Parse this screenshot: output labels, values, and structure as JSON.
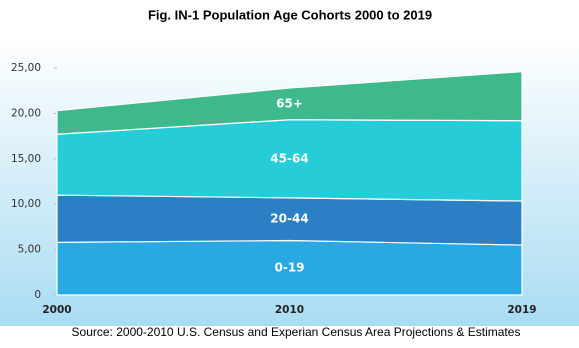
{
  "chart_data": {
    "type": "stacked-area",
    "title": "Fig. IN-1   Population Age Cohorts 2000 to 2019",
    "source": "Source: 2000-2010 U.S. Census and Experian Census Area Projections & Estimates",
    "categories": [
      "2000",
      "2010",
      "2019"
    ],
    "series": [
      {
        "name": "0-19",
        "color": "#29a9e1",
        "values": [
          5.8,
          6.0,
          5.5
        ]
      },
      {
        "name": "20-44",
        "color": "#2a7fc5",
        "values": [
          5.2,
          4.7,
          4.85
        ]
      },
      {
        "name": "45-64",
        "color": "#26ccd8",
        "values": [
          6.7,
          8.6,
          8.85
        ]
      },
      {
        "name": "65+",
        "color": "#3db98c",
        "values": [
          2.6,
          3.5,
          5.4
        ]
      }
    ],
    "ylim": [
      0,
      25
    ],
    "yticks": [
      0,
      {
        "value": 5,
        "label": "5,00"
      },
      {
        "value": 10,
        "label": "10,00"
      },
      {
        "value": 15,
        "label": "15,00"
      },
      {
        "value": 20,
        "label": "20,00"
      },
      {
        "value": 25,
        "label": "25,00"
      }
    ]
  }
}
